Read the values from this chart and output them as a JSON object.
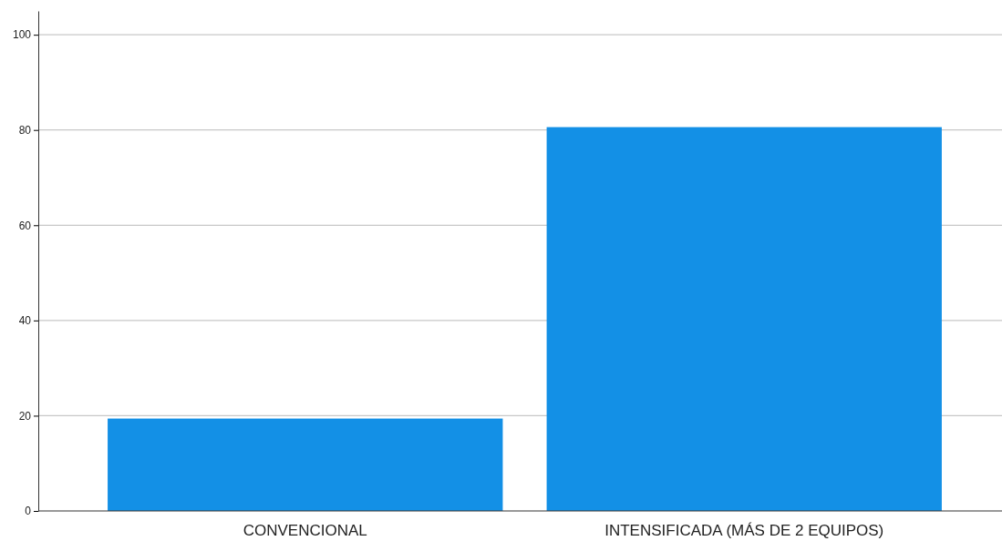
{
  "chart_data": {
    "type": "bar",
    "categories": [
      "CONVENCIONAL",
      "INTENSIFICADA (MÁS DE 2 EQUIPOS)"
    ],
    "values": [
      19.4,
      80.6
    ],
    "color": "#1390e6",
    "ylim": [
      0,
      105
    ],
    "yticks": [
      0,
      20,
      40,
      60,
      80,
      100
    ],
    "grid": "y"
  }
}
